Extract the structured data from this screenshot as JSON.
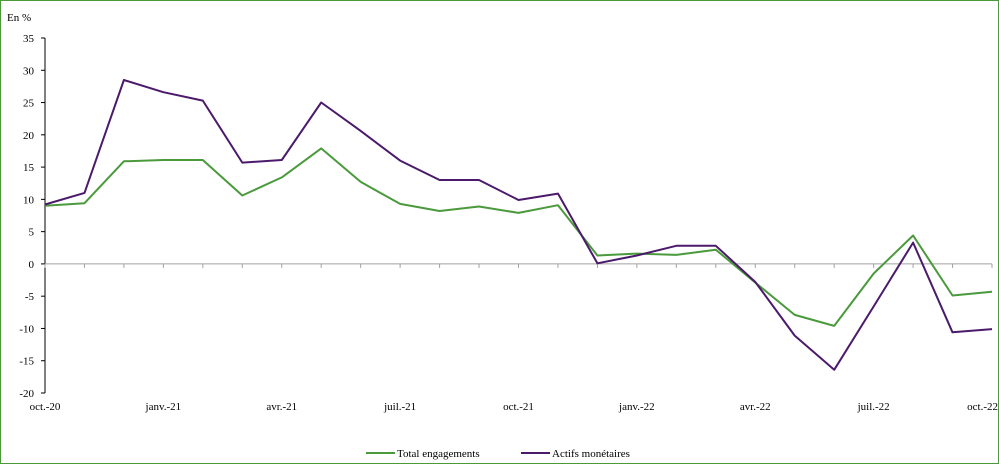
{
  "chart_data": {
    "type": "line",
    "ylabel": "En %",
    "ylim": [
      -20,
      35
    ],
    "yticks": [
      35,
      30,
      25,
      20,
      15,
      10,
      5,
      0,
      -5,
      -10,
      -15,
      -20
    ],
    "xtick_labels": [
      "oct.-20",
      "janv.-21",
      "avr.-21",
      "juil.-21",
      "oct.-21",
      "janv.-22",
      "avr.-22",
      "juil.-22",
      "oct.-22"
    ],
    "x": [
      "oct.-20",
      "nov.-20",
      "déc.-20",
      "janv.-21",
      "févr.-21",
      "mars-21",
      "avr.-21",
      "mai-21",
      "juin-21",
      "juil.-21",
      "août-21",
      "sept.-21",
      "oct.-21",
      "nov.-21",
      "déc.-21",
      "janv.-22",
      "févr.-22",
      "mars-22",
      "avr.-22",
      "mai-22",
      "juin-22",
      "juil.-22",
      "août-22",
      "sept.-22",
      "oct.-22"
    ],
    "series": [
      {
        "name": "Total engagements",
        "color": "#4a9a3c",
        "values": [
          9.0,
          9.4,
          15.9,
          16.1,
          16.1,
          10.6,
          13.4,
          17.9,
          12.7,
          9.3,
          8.2,
          8.9,
          7.9,
          9.1,
          1.3,
          1.6,
          1.4,
          2.2,
          -2.9,
          -7.9,
          -9.6,
          -1.5,
          4.4,
          -4.9,
          -4.3
        ]
      },
      {
        "name": "Actifs monétaires",
        "color": "#4b1a6b",
        "values": [
          9.2,
          11.0,
          28.5,
          26.6,
          25.3,
          15.7,
          16.1,
          25.0,
          20.6,
          16.0,
          13.0,
          13.0,
          9.9,
          10.9,
          0.1,
          1.3,
          2.8,
          2.8,
          -2.8,
          -11.1,
          -16.4,
          -6.6,
          3.3,
          -10.6,
          -10.1
        ]
      }
    ],
    "grid": false,
    "legend_position": "bottom-center"
  }
}
